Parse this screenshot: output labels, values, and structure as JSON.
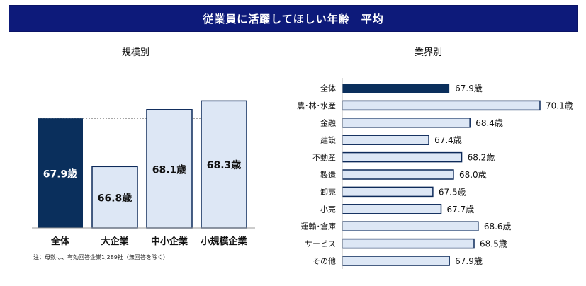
{
  "title": "従業員に活躍してほしい年齢　平均",
  "colors": {
    "highlight": "#0a2f5c",
    "bar": "#dde7f5",
    "bar_border": "#0d2a5a"
  },
  "footnote": "注：母数は、有効回答企業1,289社（無回答を除く）",
  "chart_data": [
    {
      "type": "bar",
      "title": "規模別",
      "categories": [
        "全体",
        "大企業",
        "中小企業",
        "小規模企業"
      ],
      "values": [
        67.9,
        66.8,
        68.1,
        68.3
      ],
      "value_labels": [
        "67.9歳",
        "66.8歳",
        "68.1歳",
        "68.3歳"
      ],
      "highlight_index": 0,
      "ylim": [
        65.4,
        68.5
      ],
      "reference_line": 67.9,
      "orientation": "vertical"
    },
    {
      "type": "bar",
      "title": "業界別",
      "categories": [
        "全体",
        "農･林･水産",
        "金融",
        "建設",
        "不動産",
        "製造",
        "卸売",
        "小売",
        "運輸･倉庫",
        "サービス",
        "その他"
      ],
      "values": [
        67.9,
        70.1,
        68.4,
        67.4,
        68.2,
        68.0,
        67.5,
        67.7,
        68.6,
        68.5,
        67.9
      ],
      "value_labels": [
        "67.9歳",
        "70.1歳",
        "68.4歳",
        "67.4歳",
        "68.2歳",
        "68.0歳",
        "67.5歳",
        "67.7歳",
        "68.6歳",
        "68.5歳",
        "67.9歳"
      ],
      "highlight_index": 0,
      "xlim": [
        65.3,
        70.1
      ],
      "orientation": "horizontal"
    }
  ]
}
